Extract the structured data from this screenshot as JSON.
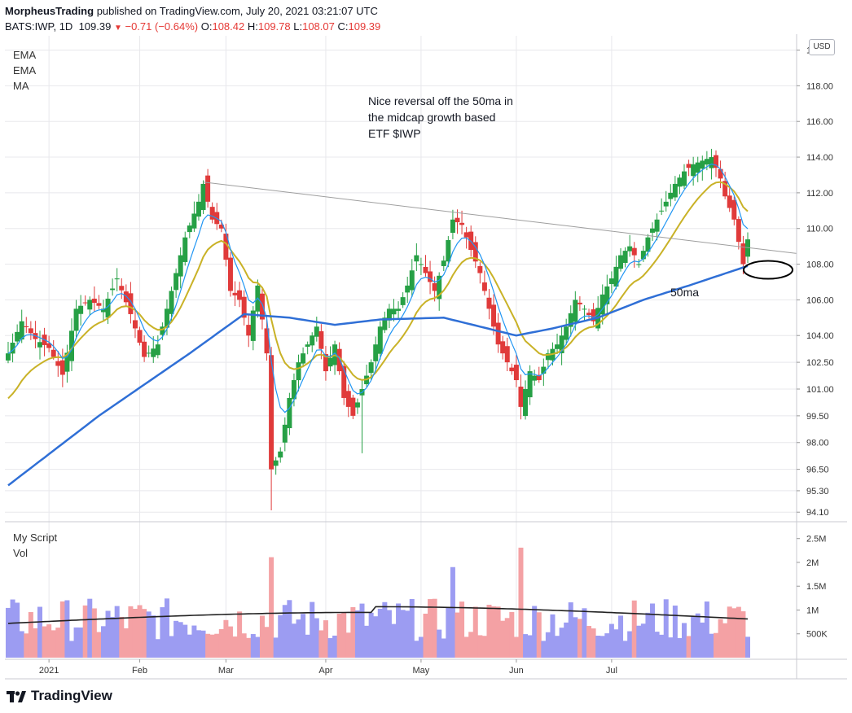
{
  "header": {
    "publisher": "MorpheusTrading",
    "published_text": "published on TradingView.com, July 20, 2021 03:21:07 UTC",
    "symbol": "BATS:IWP, 1D",
    "last": "109.39",
    "change": "−0.71 (−0.64%)",
    "o_label": "O:",
    "o_value": "108.42",
    "h_label": "H:",
    "h_value": "109.78",
    "l_label": "L:",
    "l_value": "108.07",
    "c_label": "C:",
    "c_value": "109.39"
  },
  "indicators": {
    "ema1": "EMA",
    "ema2": "EMA",
    "ma": "MA",
    "volume_script": "My Script",
    "vol": "Vol"
  },
  "currency_button": "USD",
  "annotations": {
    "note_lines": [
      "Nice reversal off the 50ma in",
      "the midcap growth based",
      "ETF $IWP"
    ],
    "ma_label": "50ma"
  },
  "branding": {
    "logo_text": "TradingView"
  },
  "colors": {
    "up": "#26a045",
    "down": "#e03a3a",
    "ema_fast": "#2196f3",
    "ema_slow": "#c9b227",
    "ma50": "#2f6fd6",
    "vol_up": "#9c9cf2",
    "vol_down": "#f4a1a4",
    "vol_ma": "#222222",
    "trendline": "#9e9e9e",
    "grid": "#e8e8ec",
    "axis": "#555555"
  },
  "chart_data": {
    "type": "candlestick",
    "symbol": "BATS:IWP",
    "interval": "1D",
    "x_labels": [
      "2021",
      "Feb",
      "Mar",
      "Apr",
      "May",
      "Jun",
      "Jul"
    ],
    "y_ticks": [
      94.1,
      95.3,
      96.5,
      98.0,
      99.5,
      101.0,
      102.5,
      104.0,
      106.0,
      108.0,
      110.0,
      112.0,
      114.0,
      116.0,
      118.0,
      120.0
    ],
    "volume_ticks": [
      500000,
      1000000,
      1500000,
      2000000,
      2500000
    ],
    "volume_tick_labels": [
      "500K",
      "1M",
      "1.5M",
      "2M",
      "2.5M"
    ],
    "anchor_closes": [
      [
        0,
        103.0
      ],
      [
        3,
        104.8
      ],
      [
        6,
        103.8
      ],
      [
        9,
        103.3
      ],
      [
        12,
        101.8
      ],
      [
        15,
        105.5
      ],
      [
        18,
        106.0
      ],
      [
        21,
        105.5
      ],
      [
        24,
        107.2
      ],
      [
        27,
        105.2
      ],
      [
        30,
        102.8
      ],
      [
        33,
        103.5
      ],
      [
        36,
        106.5
      ],
      [
        39,
        109.5
      ],
      [
        42,
        111.5
      ],
      [
        43,
        112.5
      ],
      [
        45,
        110.5
      ],
      [
        47,
        110.0
      ],
      [
        49,
        106.5
      ],
      [
        51,
        106.0
      ],
      [
        53,
        104.0
      ],
      [
        55,
        106.8
      ],
      [
        57,
        103.0
      ],
      [
        58,
        96.5
      ],
      [
        60,
        97.5
      ],
      [
        62,
        100.5
      ],
      [
        64,
        102.5
      ],
      [
        66,
        103.5
      ],
      [
        68,
        104.5
      ],
      [
        70,
        102.0
      ],
      [
        72,
        103.5
      ],
      [
        74,
        100.5
      ],
      [
        76,
        99.5
      ],
      [
        78,
        101.0
      ],
      [
        80,
        102.5
      ],
      [
        82,
        104.5
      ],
      [
        84,
        105.5
      ],
      [
        86,
        105.5
      ],
      [
        88,
        106.8
      ],
      [
        90,
        108.5
      ],
      [
        92,
        107.5
      ],
      [
        94,
        106.5
      ],
      [
        96,
        108.2
      ],
      [
        98,
        110.5
      ],
      [
        100,
        110.2
      ],
      [
        102,
        108.8
      ],
      [
        104,
        107.5
      ],
      [
        106,
        105.5
      ],
      [
        108,
        103.5
      ],
      [
        110,
        102.5
      ],
      [
        112,
        101.5
      ],
      [
        113,
        100.0
      ],
      [
        115,
        102.0
      ],
      [
        117,
        101.5
      ],
      [
        119,
        103.0
      ],
      [
        121,
        103.5
      ],
      [
        123,
        104.5
      ],
      [
        125,
        106.0
      ],
      [
        127,
        105.5
      ],
      [
        129,
        104.8
      ],
      [
        131,
        106.3
      ],
      [
        133,
        107.2
      ],
      [
        135,
        108.5
      ],
      [
        137,
        109.0
      ],
      [
        139,
        108.0
      ],
      [
        141,
        109.5
      ],
      [
        143,
        110.5
      ],
      [
        145,
        111.5
      ],
      [
        147,
        112.5
      ],
      [
        149,
        113.2
      ],
      [
        151,
        113.6
      ],
      [
        153,
        113.8
      ],
      [
        155,
        114.0
      ],
      [
        157,
        112.8
      ],
      [
        158,
        111.8
      ],
      [
        160,
        110.5
      ],
      [
        162,
        108.0
      ],
      [
        163,
        109.4
      ]
    ],
    "close_last": 109.39,
    "ma50_last": 107.9,
    "volume_range": [
      0,
      2700000
    ],
    "volume_ma_approx": [
      700000,
      1000000
    ],
    "price_ylim": [
      93.7,
      120.8
    ]
  }
}
